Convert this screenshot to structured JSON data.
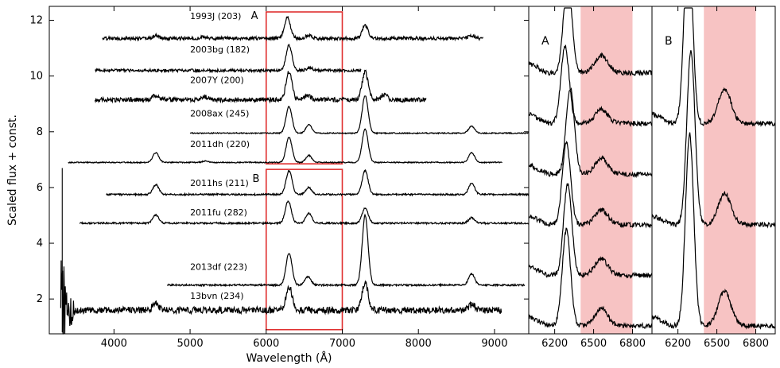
{
  "chart_data": [
    {
      "type": "line",
      "panel": "main",
      "xlabel": "Wavelength (Å)",
      "ylabel": "Scaled flux + const.",
      "xlim": [
        3150,
        9450
      ],
      "ylim": [
        0.75,
        12.5
      ],
      "xticks": [
        4000,
        5000,
        6000,
        7000,
        8000,
        9000
      ],
      "yticks": [
        2,
        4,
        6,
        8,
        10,
        12
      ],
      "grid": false,
      "legend": "none",
      "boxes": [
        {
          "label": "A",
          "x": [
            6000,
            7000
          ],
          "y": [
            6.85,
            12.3
          ],
          "color": "#e03030"
        },
        {
          "label": "B",
          "x": [
            6000,
            7000
          ],
          "y": [
            0.9,
            6.65
          ],
          "color": "#e03030"
        }
      ],
      "series": [
        {
          "name": "1993J (203)",
          "x_range": [
            3850,
            8850
          ],
          "offset": 11.35,
          "noise": 0.06,
          "features": [
            [
              4550,
              0.1
            ],
            [
              5180,
              0.05
            ],
            [
              6280,
              0.75
            ],
            [
              6560,
              0.12
            ],
            [
              7300,
              0.45
            ],
            [
              8700,
              0.1
            ]
          ]
        },
        {
          "name": "2003bg (182)",
          "x_range": [
            3750,
            7250
          ],
          "offset": 10.2,
          "noise": 0.05,
          "features": [
            [
              6300,
              0.9
            ],
            [
              6570,
              0.1
            ]
          ]
        },
        {
          "name": "2007Y (200)",
          "x_range": [
            3750,
            8100
          ],
          "offset": 9.15,
          "noise": 0.08,
          "features": [
            [
              4550,
              0.15
            ],
            [
              5200,
              0.1
            ],
            [
              6300,
              1.0
            ],
            [
              6550,
              0.15
            ],
            [
              7300,
              1.0
            ],
            [
              7550,
              0.2
            ]
          ]
        },
        {
          "name": "2008ax (245)",
          "x_range": [
            5000,
            9450
          ],
          "offset": 7.95,
          "noise": 0.02,
          "features": [
            [
              6300,
              0.95
            ],
            [
              6560,
              0.3
            ],
            [
              7300,
              1.35
            ],
            [
              8700,
              0.25
            ]
          ]
        },
        {
          "name": "2011dh (220)",
          "x_range": [
            3400,
            9100
          ],
          "offset": 6.9,
          "noise": 0.02,
          "features": [
            [
              4550,
              0.35
            ],
            [
              5200,
              0.05
            ],
            [
              6300,
              0.9
            ],
            [
              6560,
              0.25
            ],
            [
              7300,
              1.2
            ],
            [
              8700,
              0.35
            ]
          ]
        },
        {
          "name": "2011hs (211)",
          "x_range": [
            3900,
            9450
          ],
          "offset": 5.75,
          "noise": 0.03,
          "features": [
            [
              4550,
              0.35
            ],
            [
              6300,
              0.85
            ],
            [
              6560,
              0.25
            ],
            [
              7300,
              0.85
            ],
            [
              8700,
              0.4
            ]
          ]
        },
        {
          "name": "2011fu (282)",
          "x_range": [
            3550,
            9450
          ],
          "offset": 4.72,
          "noise": 0.03,
          "features": [
            [
              4550,
              0.3
            ],
            [
              6290,
              0.8
            ],
            [
              6560,
              0.35
            ],
            [
              7300,
              0.55
            ],
            [
              8700,
              0.2
            ]
          ]
        },
        {
          "name": "2013df (223)",
          "x_range": [
            4700,
            9400
          ],
          "offset": 2.5,
          "noise": 0.03,
          "features": [
            [
              6300,
              1.15
            ],
            [
              6550,
              0.3
            ],
            [
              7300,
              2.5
            ],
            [
              8700,
              0.4
            ]
          ]
        },
        {
          "name": "13bvn (234)",
          "x_range": [
            3300,
            9100
          ],
          "offset": 1.6,
          "noise": 0.12,
          "features": [
            [
              4550,
              0.25
            ],
            [
              6300,
              0.85
            ],
            [
              7300,
              1.0
            ],
            [
              8700,
              0.2
            ]
          ]
        }
      ],
      "labels": [
        {
          "text": "1993J (203)",
          "x": 5000,
          "y": 12.05
        },
        {
          "text": "A",
          "x": 5800,
          "y": 12.05
        },
        {
          "text": "2003bg (182)",
          "x": 5000,
          "y": 10.85
        },
        {
          "text": "2007Y (200)",
          "x": 5000,
          "y": 9.75
        },
        {
          "text": "2008ax (245)",
          "x": 5000,
          "y": 8.55
        },
        {
          "text": "2011dh (220)",
          "x": 5000,
          "y": 7.45
        },
        {
          "text": "2011hs (211)",
          "x": 5000,
          "y": 6.05
        },
        {
          "text": "B",
          "x": 5820,
          "y": 6.2
        },
        {
          "text": "2011fu (282)",
          "x": 5000,
          "y": 5.0
        },
        {
          "text": "2013df (223)",
          "x": 5000,
          "y": 3.05
        },
        {
          "text": "13bvn (234)",
          "x": 5000,
          "y": 2.0
        }
      ]
    },
    {
      "type": "line",
      "panel": "A",
      "title_label": "A",
      "xlim": [
        6000,
        6950
      ],
      "xticks": [
        6200,
        6500,
        6800
      ],
      "shaded": {
        "x": [
          6400,
          6800
        ],
        "color": "#f7c3c3"
      },
      "series_count": 6,
      "features": [
        {
          "center": 6300,
          "height": 1.0
        },
        {
          "center": 6280,
          "height": 0.8
        },
        {
          "center": 6320,
          "height": 0.9
        },
        {
          "center": 6290,
          "height": 0.85
        },
        {
          "center": 6300,
          "height": 0.95
        },
        {
          "center": 6290,
          "height": 1.0
        }
      ]
    },
    {
      "type": "line",
      "panel": "B",
      "title_label": "B",
      "xlim": [
        6000,
        6950
      ],
      "xticks": [
        6200,
        6500,
        6800
      ],
      "shaded": {
        "x": [
          6400,
          6800
        ],
        "color": "#f7c3c3"
      },
      "series_count": 3,
      "features": [
        {
          "center": 6280,
          "height": 1.0
        },
        {
          "center": 6300,
          "height": 0.9
        },
        {
          "center": 6290,
          "height": 1.0
        }
      ]
    }
  ]
}
